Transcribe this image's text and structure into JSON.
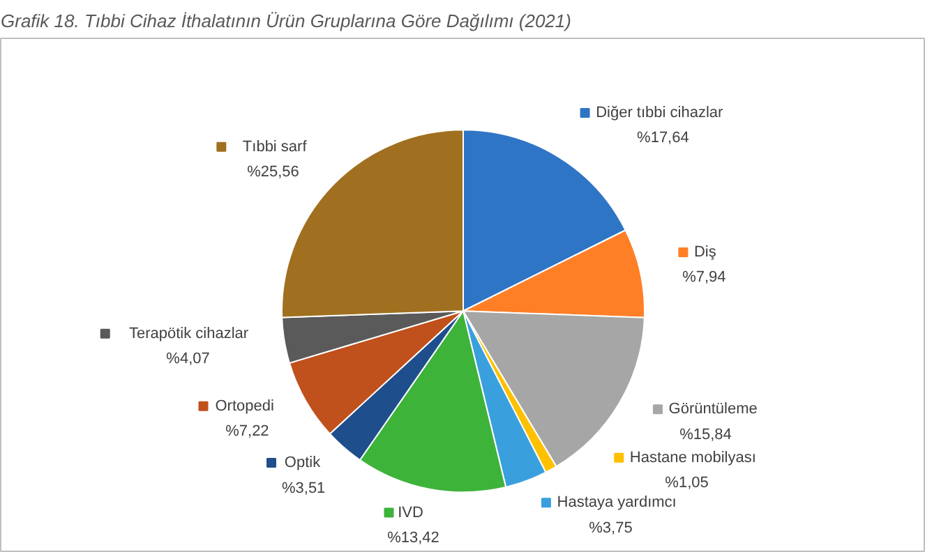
{
  "chart_data": {
    "type": "pie",
    "title": "Grafik 18. Tıbbi Cihaz İthalatının Ürün Gruplarına Göre Dağılımı (2021)",
    "categories": [
      "Diğer tıbbi cihazlar",
      "Diş",
      "Görüntüleme",
      "Hastane mobilyası",
      "Hastaya yardımcı",
      "IVD",
      "Optik",
      "Ortopedi",
      "Terapötik cihazlar",
      "Tıbbi sarf"
    ],
    "values": [
      17.64,
      7.94,
      15.84,
      1.05,
      3.75,
      13.42,
      3.51,
      7.22,
      4.07,
      25.56
    ],
    "value_labels": [
      "%17,64",
      "%7,94",
      "%15,84",
      "%1,05",
      "%3,75",
      "%13,42",
      "%3,51",
      "%7,22",
      "%4,07",
      "%25,56"
    ],
    "legend": "bottom left",
    "colors": [
      "#2e75c6",
      "#ff7f27",
      "#a6a6a6",
      "#ffc000",
      "#3aa0dd",
      "#3db33a",
      "#1f4e8c",
      "#c0501c",
      "#5a5a5a",
      "#a07020"
    ]
  }
}
